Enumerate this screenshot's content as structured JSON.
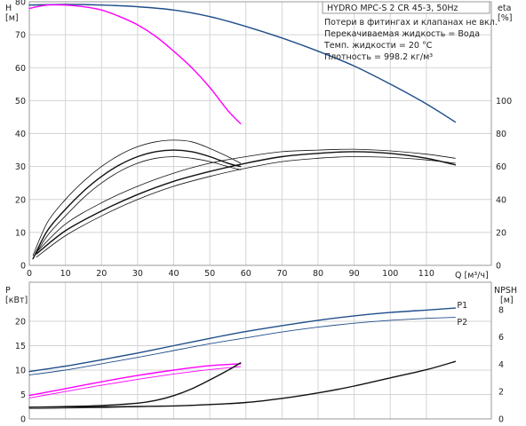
{
  "chart_data": {
    "type": "line",
    "info": {
      "title": "HYDRO MPC-S 2 CR 45-3, 50Hz",
      "lines": [
        "Потери в фитингах и клапанах не вкл.",
        "Перекачиваемая жидкость = Вода",
        "Темп. жидкости = 20 °C",
        "Плотность = 998.2 кг/м³"
      ]
    },
    "colors": {
      "blue": "#1f4e8a",
      "magenta": "#ff00ff",
      "black": "#111111",
      "grid": "#d4d4d4"
    },
    "x_axis": {
      "label": "Q [м³/ч]",
      "ticks": [
        0,
        10,
        20,
        30,
        40,
        50,
        60,
        70,
        80,
        90,
        100,
        110
      ],
      "range": [
        0,
        128
      ]
    },
    "top_panel": {
      "left_axis": {
        "name": "H",
        "unit": "[м]",
        "ticks": [
          0,
          10,
          20,
          30,
          40,
          50,
          60,
          70,
          80
        ],
        "range": [
          0,
          80
        ]
      },
      "right_axis": {
        "name": "eta",
        "unit": "[%]",
        "ticks": [
          0,
          20,
          40,
          60,
          80,
          100
        ],
        "range": [
          0,
          160
        ]
      },
      "series": [
        {
          "id": "h-two-pumps",
          "color": "blue",
          "width": 1.4,
          "axis": "H",
          "x": [
            0,
            10,
            20,
            30,
            40,
            50,
            60,
            70,
            80,
            90,
            100,
            110,
            118
          ],
          "y": [
            79,
            79.2,
            79,
            78.5,
            77.5,
            75.5,
            72.5,
            69,
            65,
            60.5,
            55,
            49,
            43.5
          ]
        },
        {
          "id": "h-one-pump",
          "color": "magenta",
          "width": 1.4,
          "axis": "H",
          "x": [
            0,
            5,
            10,
            15,
            20,
            25,
            30,
            35,
            40,
            45,
            50,
            55,
            58.5
          ],
          "y": [
            78,
            79,
            79,
            78.5,
            77.5,
            75.5,
            73,
            69.5,
            65,
            60,
            54,
            47,
            43
          ]
        },
        {
          "id": "eta-one-pump-a",
          "color": "black",
          "width": 0.8,
          "axis": "eta",
          "x": [
            1,
            5,
            10,
            15,
            20,
            25,
            30,
            35,
            40,
            45,
            50,
            55,
            58.5
          ],
          "y": [
            6,
            26,
            40,
            51,
            60,
            67,
            72,
            75,
            76,
            75,
            71,
            66,
            62
          ]
        },
        {
          "id": "eta-one-pump-b",
          "color": "black",
          "width": 1.4,
          "axis": "eta",
          "x": [
            1,
            5,
            10,
            15,
            20,
            25,
            30,
            35,
            40,
            45,
            50,
            55,
            58.5
          ],
          "y": [
            4,
            21,
            34,
            45,
            54,
            61,
            66,
            69,
            70,
            69,
            66,
            62,
            60
          ]
        },
        {
          "id": "eta-one-pump-c",
          "color": "black",
          "width": 0.8,
          "axis": "eta",
          "x": [
            1,
            5,
            10,
            15,
            20,
            25,
            30,
            35,
            40,
            45,
            50,
            55,
            58.5
          ],
          "y": [
            4,
            18,
            30,
            41,
            50,
            57,
            62,
            65,
            66,
            65,
            63,
            60,
            58
          ]
        },
        {
          "id": "eta-two-pumps-a",
          "color": "black",
          "width": 0.8,
          "axis": "eta",
          "x": [
            2,
            10,
            20,
            30,
            40,
            50,
            60,
            70,
            80,
            90,
            100,
            110,
            118
          ],
          "y": [
            8,
            25,
            38,
            48,
            56,
            62,
            66,
            69,
            70,
            70.5,
            69.5,
            67.5,
            65
          ]
        },
        {
          "id": "eta-two-pumps-b",
          "color": "black",
          "width": 1.4,
          "axis": "eta",
          "x": [
            2,
            10,
            20,
            30,
            40,
            50,
            60,
            70,
            80,
            90,
            100,
            110,
            118
          ],
          "y": [
            7,
            21,
            33,
            43,
            51,
            57,
            62,
            66,
            68,
            69,
            68,
            65,
            61
          ]
        },
        {
          "id": "eta-two-pumps-c",
          "color": "black",
          "width": 0.8,
          "axis": "eta",
          "x": [
            2,
            10,
            20,
            30,
            40,
            50,
            60,
            70,
            80,
            90,
            100,
            110,
            118
          ],
          "y": [
            5,
            18,
            30,
            40,
            48,
            54,
            59,
            63,
            65,
            66,
            65.5,
            64,
            62
          ]
        }
      ]
    },
    "bottom_panel": {
      "left_axis": {
        "name": "P",
        "unit": "[кВт]",
        "ticks": [
          0,
          5,
          10,
          15,
          20
        ],
        "range": [
          0,
          28
        ]
      },
      "right_axis": {
        "name": "NPSH",
        "unit": "[м]",
        "ticks": [
          0,
          2,
          4,
          6,
          8
        ],
        "range": [
          0,
          10
        ]
      },
      "labels": [
        {
          "text": "P1",
          "x": 118.5,
          "y": 23.3
        },
        {
          "text": "P2",
          "x": 118.5,
          "y": 19.8
        }
      ],
      "series": [
        {
          "id": "p1-two-pumps",
          "color": "blue",
          "width": 1.4,
          "axis": "P",
          "x": [
            0,
            10,
            20,
            30,
            40,
            50,
            60,
            70,
            80,
            90,
            100,
            110,
            118
          ],
          "y": [
            9.7,
            10.8,
            12.1,
            13.5,
            15.0,
            16.5,
            17.9,
            19.1,
            20.2,
            21.1,
            21.8,
            22.3,
            22.7
          ]
        },
        {
          "id": "p2-two-pumps",
          "color": "blue",
          "width": 0.9,
          "axis": "P",
          "x": [
            0,
            10,
            20,
            30,
            40,
            50,
            60,
            70,
            80,
            90,
            100,
            110,
            118
          ],
          "y": [
            9.0,
            10.0,
            11.3,
            12.6,
            14.0,
            15.4,
            16.6,
            17.8,
            18.8,
            19.6,
            20.2,
            20.6,
            20.8
          ]
        },
        {
          "id": "p1-one-pump",
          "color": "magenta",
          "width": 1.4,
          "axis": "P",
          "x": [
            0,
            10,
            20,
            30,
            40,
            50,
            58.5
          ],
          "y": [
            4.8,
            6.2,
            7.6,
            8.9,
            10.0,
            10.9,
            11.3
          ]
        },
        {
          "id": "p2-one-pump",
          "color": "magenta",
          "width": 0.9,
          "axis": "P",
          "x": [
            0,
            10,
            20,
            30,
            40,
            50,
            58.5
          ],
          "y": [
            4.3,
            5.6,
            6.9,
            8.1,
            9.2,
            10.1,
            10.7
          ]
        },
        {
          "id": "npsh-one-pump",
          "color": "black",
          "width": 1.4,
          "axis": "NPSH",
          "x": [
            0,
            10,
            20,
            30,
            35,
            40,
            45,
            50,
            55,
            58.5
          ],
          "y": [
            0.85,
            0.9,
            0.98,
            1.15,
            1.35,
            1.7,
            2.2,
            2.85,
            3.55,
            4.1
          ]
        },
        {
          "id": "npsh-two-pumps",
          "color": "black",
          "width": 1.4,
          "axis": "NPSH",
          "x": [
            0,
            20,
            40,
            50,
            60,
            70,
            80,
            90,
            100,
            110,
            118
          ],
          "y": [
            0.85,
            0.88,
            0.95,
            1.05,
            1.2,
            1.5,
            1.9,
            2.4,
            3.0,
            3.6,
            4.2
          ]
        },
        {
          "id": "npsh-one-pump-thin",
          "color": "black",
          "width": 0.6,
          "axis": "NPSH",
          "x": [
            0,
            10,
            20,
            30,
            40,
            50,
            58.5
          ],
          "y": [
            0.75,
            0.78,
            0.82,
            0.88,
            0.95,
            1.05,
            1.15
          ]
        }
      ]
    }
  }
}
